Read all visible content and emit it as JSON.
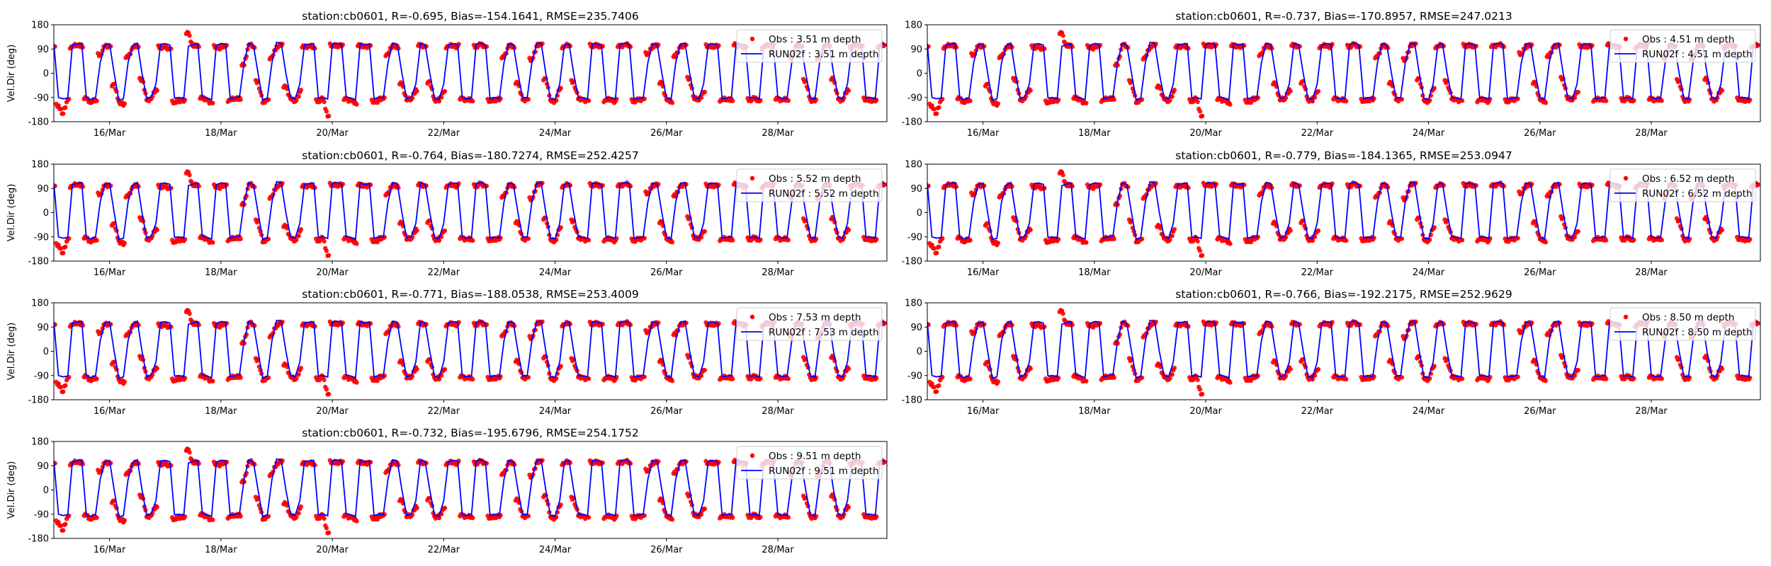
{
  "chart_data": {
    "type": "scatter+line",
    "layout": "4 rows x 2 columns, 7 panels",
    "ylabel": "Vel.Dir (deg)",
    "ylim": [
      -180,
      180
    ],
    "yticks": [
      -180,
      -90,
      0,
      90,
      180
    ],
    "x_units": "hours since 15/Mar 00:00",
    "xlim": [
      0,
      359
    ],
    "xticks": [
      {
        "value": 24,
        "label": "16/Mar"
      },
      {
        "value": 72,
        "label": "18/Mar"
      },
      {
        "value": 120,
        "label": "20/Mar"
      },
      {
        "value": 168,
        "label": "22/Mar"
      },
      {
        "value": 216,
        "label": "24/Mar"
      },
      {
        "value": 264,
        "label": "26/Mar"
      },
      {
        "value": 312,
        "label": "28/Mar"
      }
    ],
    "legend_placement": "upper-right",
    "colors": {
      "obs": "#ff0000",
      "model": "#0000ff"
    },
    "x_start": 0,
    "x_step": 2,
    "model_values": [
      110,
      -90,
      -95,
      -92,
      105,
      108,
      112,
      -92,
      -98,
      -90,
      40,
      105,
      110,
      0,
      -100,
      -95,
      40,
      102,
      112,
      0,
      -95,
      -88,
      -40,
      108,
      110,
      105,
      -92,
      -90,
      -95,
      100,
      106,
      110,
      -88,
      -92,
      -98,
      104,
      110,
      108,
      -95,
      -90,
      -88,
      40,
      112,
      104,
      0,
      -100,
      -92,
      40,
      115,
      110,
      0,
      -90,
      -95,
      -40,
      105,
      108,
      110,
      -92,
      -90,
      -96,
      108,
      112,
      106,
      -88,
      -92,
      -100,
      110,
      104,
      108,
      -95,
      -90,
      -92,
      40,
      112,
      108,
      0,
      -94,
      -90,
      -40,
      110,
      106,
      0,
      -92,
      -98,
      -40,
      105,
      110,
      108,
      -90,
      -95,
      -92,
      108,
      112,
      104,
      -96,
      -90,
      -95,
      40,
      110,
      106,
      0,
      -92,
      -90,
      40,
      108,
      112,
      0,
      -94,
      -98,
      -40,
      105,
      110,
      0,
      -90,
      -92,
      -95,
      110,
      108,
      104,
      -92,
      -90,
      -96,
      106,
      112,
      108,
      -95,
      -94,
      -90,
      40,
      110,
      106,
      0,
      -92,
      -98,
      40,
      108,
      112,
      0,
      -90,
      -95,
      -40,
      106,
      110,
      104,
      -95,
      -92,
      -90,
      110,
      108,
      106,
      -92,
      -90,
      -96,
      104,
      112,
      108,
      -90,
      -94,
      -92,
      40,
      110,
      106,
      0,
      -92,
      -96,
      40,
      108,
      112,
      0,
      -90,
      -95,
      -40,
      104,
      110,
      108,
      -92,
      -90,
      -96,
      105,
      110
    ],
    "obs_values": [
      100,
      -120,
      -150,
      -100,
      98,
      105,
      104,
      -95,
      -110,
      -100,
      70,
      100,
      98,
      -40,
      -105,
      -120,
      60,
      96,
      102,
      -20,
      -100,
      -95,
      -60,
      100,
      95,
      90,
      -110,
      -98,
      -105,
      150,
      100,
      104,
      -95,
      -100,
      -110,
      98,
      96,
      100,
      -100,
      -95,
      -90,
      30,
      105,
      98,
      -30,
      -110,
      -100,
      60,
      100,
      102,
      -50,
      -95,
      -105,
      -70,
      98,
      100,
      96,
      -100,
      -95,
      -160,
      102,
      105,
      100,
      -95,
      -100,
      -110,
      100,
      98,
      104,
      -105,
      -100,
      -95,
      70,
      104,
      100,
      -40,
      -100,
      -98,
      -60,
      102,
      98,
      -30,
      -98,
      -104,
      -70,
      100,
      104,
      100,
      -95,
      -100,
      -100,
      102,
      106,
      98,
      -104,
      -96,
      -100,
      60,
      104,
      100,
      -40,
      -98,
      -96,
      50,
      100,
      106,
      -20,
      -100,
      -104,
      -60,
      98,
      104,
      -30,
      -96,
      -98,
      -100,
      104,
      100,
      98,
      -100,
      -96,
      -104,
      100,
      106,
      102,
      -100,
      -100,
      -96,
      70,
      104,
      100,
      -35,
      -98,
      -104,
      60,
      100,
      106,
      -20,
      -96,
      -100,
      -70,
      100,
      104,
      98,
      -100,
      -98,
      -96,
      104,
      100,
      100,
      -98,
      -96,
      -104,
      98,
      106,
      102,
      -96,
      -100,
      -98,
      60,
      104,
      100,
      -30,
      -98,
      -104,
      55,
      102,
      106,
      -25,
      -96,
      -100,
      -60,
      98,
      104,
      102,
      -98,
      -96,
      -104,
      100,
      104
    ],
    "panels": [
      {
        "title": "station:cb0601, R=-0.695, Bias=-154.1641, RMSE=235.7406",
        "obs_label": "Obs : 3.51 m depth",
        "model_label": "RUN02f : 3.51 m depth"
      },
      {
        "title": "station:cb0601, R=-0.737, Bias=-170.8957, RMSE=247.0213",
        "obs_label": "Obs : 4.51 m depth",
        "model_label": "RUN02f : 4.51 m depth"
      },
      {
        "title": "station:cb0601, R=-0.764, Bias=-180.7274, RMSE=252.4257",
        "obs_label": "Obs : 5.52 m depth",
        "model_label": "RUN02f : 5.52 m depth"
      },
      {
        "title": "station:cb0601, R=-0.779, Bias=-184.1365, RMSE=253.0947",
        "obs_label": "Obs : 6.52 m depth",
        "model_label": "RUN02f : 6.52 m depth"
      },
      {
        "title": "station:cb0601, R=-0.771, Bias=-188.0538, RMSE=253.4009",
        "obs_label": "Obs : 7.53 m depth",
        "model_label": "RUN02f : 7.53 m depth"
      },
      {
        "title": "station:cb0601, R=-0.766, Bias=-192.2175, RMSE=252.9629",
        "obs_label": "Obs : 8.50 m depth",
        "model_label": "RUN02f : 8.50 m depth"
      },
      {
        "title": "station:cb0601, R=-0.732, Bias=-195.6796, RMSE=254.1752",
        "obs_label": "Obs : 9.51 m depth",
        "model_label": "RUN02f : 9.51 m depth"
      }
    ]
  }
}
